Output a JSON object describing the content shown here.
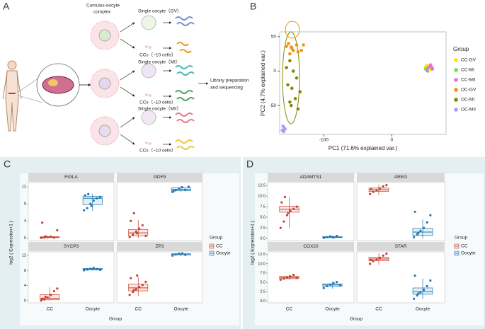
{
  "diagram": {
    "panel_label": "A",
    "complex_label": [
      "Cumulus-oocyte",
      "complex"
    ],
    "stages": [
      {
        "oocyte_label": "Single oocyte（GV）",
        "cc_label": "CCs（~10 cells）"
      },
      {
        "oocyte_label": "Single oocyte（MI）",
        "cc_label": "CCs（~10 cells）"
      },
      {
        "oocyte_label": "Single oocyte（MII）",
        "cc_label": "CCs（~10 cells）"
      }
    ],
    "output_label": [
      "Library preparation",
      "and  sequencing"
    ]
  },
  "chart_data": [
    {
      "type": "scatter",
      "panel_label": "B",
      "xlabel": "PC1 (71.6% explained var.)",
      "ylabel": "PC2 (4.7% explained var.)",
      "xlim": [
        -165,
        80
      ],
      "ylim": [
        -92,
        57
      ],
      "xticks": [
        -100,
        0
      ],
      "yticks": [
        -50,
        0,
        50
      ],
      "legend_title": "Group",
      "legend": "right",
      "series": [
        {
          "name": "CC-GV",
          "color": "#f2e600",
          "x": [
            52,
            55,
            58,
            50
          ],
          "y": [
            8,
            5,
            2,
            6
          ]
        },
        {
          "name": "CC-MI",
          "color": "#6ee23a",
          "x": [
            50,
            53,
            56,
            60
          ],
          "y": [
            3,
            0,
            6,
            4
          ]
        },
        {
          "name": "CC-MII",
          "color": "#f26adf",
          "x": [
            54,
            57,
            60,
            52,
            58
          ],
          "y": [
            5,
            9,
            3,
            1,
            7
          ]
        },
        {
          "name": "OC-GV",
          "color": "#ee9312",
          "x": [
            -152,
            -148,
            -145,
            -150,
            -140,
            -147,
            -155,
            -130,
            -133,
            -138
          ],
          "y": [
            40,
            35,
            30,
            25,
            38,
            33,
            36,
            38,
            30,
            28
          ]
        },
        {
          "name": "OC-MI",
          "color": "#86860a",
          "x": [
            -150,
            -148,
            -142,
            -135,
            -153,
            -140,
            -145,
            -155,
            -150,
            -138,
            -147
          ],
          "y": [
            -45,
            -50,
            -40,
            -30,
            -20,
            -10,
            0,
            5,
            15,
            -55,
            -25
          ]
        },
        {
          "name": "OC-MII",
          "color": "#a3a0f5",
          "x": [
            -160,
            -158,
            -161,
            -159,
            -157
          ],
          "y": [
            -80,
            -83,
            -86,
            -88,
            -84
          ]
        }
      ]
    },
    {
      "type": "box",
      "panel_label": "C",
      "xlabel": "Group",
      "ylabel": "log2 ( Expression+1 )",
      "categories": [
        "CC",
        "Oocyte"
      ],
      "ylim": [
        -0.6,
        13
      ],
      "yticks": [
        0,
        4,
        8,
        12
      ],
      "legend_title": "Group",
      "legend": "right",
      "series": [
        {
          "name": "CC",
          "color": "#c8402f"
        },
        {
          "name": "Oocyte",
          "color": "#1f78b4"
        }
      ],
      "facets": [
        {
          "title": "FIGLA",
          "boxes": [
            {
              "min": 0,
              "q1": 0.1,
              "median": 0.15,
              "q3": 0.3,
              "max": 0.6,
              "points": [
                0,
                0.1,
                0.2,
                0.3,
                0.1,
                1.8,
                3.6,
                0.4
              ]
            },
            {
              "min": 6.4,
              "q1": 7.8,
              "median": 9.3,
              "q3": 9.8,
              "max": 10.4,
              "points": [
                6.5,
                7,
                8,
                8.8,
                9.3,
                9.6,
                10,
                10.3,
                7.5
              ]
            }
          ]
        },
        {
          "title": "GDF9",
          "boxes": [
            {
              "min": 0,
              "q1": 0.5,
              "median": 1.2,
              "q3": 2.0,
              "max": 4.2,
              "points": [
                0.2,
                0.8,
                1.5,
                2.2,
                3,
                0.5,
                4,
                5.8,
                1.1
              ]
            },
            {
              "min": 10.7,
              "q1": 11.1,
              "median": 11.4,
              "q3": 11.8,
              "max": 12.1,
              "points": [
                10.8,
                11.2,
                11.5,
                11.9,
                11.3,
                12,
                11
              ]
            }
          ]
        },
        {
          "title": "SYCP3",
          "boxes": [
            {
              "min": 0,
              "q1": 0.2,
              "median": 0.6,
              "q3": 1.6,
              "max": 3.5,
              "points": [
                0,
                0.3,
                0.8,
                1.5,
                2.5,
                3.2,
                0.5,
                1
              ]
            },
            {
              "min": 8,
              "q1": 8.2,
              "median": 8.4,
              "q3": 8.6,
              "max": 8.8,
              "points": [
                8.1,
                8.3,
                8.5,
                8.7,
                8.4,
                8.2
              ]
            }
          ]
        },
        {
          "title": "ZP3",
          "boxes": [
            {
              "min": 1.2,
              "q1": 2.6,
              "median": 3.4,
              "q3": 4.4,
              "max": 6.3,
              "points": [
                1.5,
                2.3,
                3,
                3.6,
                4.2,
                5,
                6,
                2.8,
                6.7
              ]
            },
            {
              "min": 11.9,
              "q1": 12.2,
              "median": 12.4,
              "q3": 12.5,
              "max": 12.7,
              "points": [
                12,
                12.3,
                12.5,
                12.6,
                12.2
              ]
            }
          ]
        }
      ]
    },
    {
      "type": "box",
      "panel_label": "D",
      "xlabel": "Group",
      "ylabel": "log2 ( Expression+1 )",
      "categories": [
        "CC",
        "Oocyte"
      ],
      "ylim": [
        -0.5,
        13.2
      ],
      "yticks": [
        {
          "value": 0,
          "label": "0.0"
        },
        2.5,
        {
          "value": 5,
          "label": "5.0"
        },
        7.5,
        {
          "value": 10,
          "label": "10.0"
        },
        12.5
      ],
      "legend_title": "Group",
      "legend": "right",
      "series": [
        {
          "name": "CC",
          "color": "#c8402f"
        },
        {
          "name": "Oocyte",
          "color": "#1f78b4"
        }
      ],
      "facets": [
        {
          "title": "ADAMTS1",
          "boxes": [
            {
              "min": 2.5,
              "q1": 6.2,
              "median": 6.9,
              "q3": 7.6,
              "max": 9.8,
              "points": [
                2.5,
                4,
                5.5,
                6.5,
                7,
                7.5,
                8.5,
                9.8,
                6
              ]
            },
            {
              "min": 0,
              "q1": 0.2,
              "median": 0.3,
              "q3": 0.45,
              "max": 0.7,
              "points": [
                0.1,
                0.3,
                0.5,
                0.2,
                0.6
              ]
            }
          ]
        },
        {
          "title": "AREG",
          "boxes": [
            {
              "min": 10.2,
              "q1": 11.1,
              "median": 11.5,
              "q3": 11.9,
              "max": 12.7,
              "points": [
                10.5,
                11,
                11.4,
                11.8,
                12.3,
                12.6,
                11.6
              ]
            },
            {
              "min": 0,
              "q1": 0.7,
              "median": 1.5,
              "q3": 2.4,
              "max": 4.5,
              "points": [
                0.3,
                1,
                1.8,
                2.5,
                3.8,
                5.5,
                6.3,
                1.3
              ]
            }
          ]
        },
        {
          "title": "COX20",
          "boxes": [
            {
              "min": 5.6,
              "q1": 6,
              "median": 6.3,
              "q3": 6.6,
              "max": 7.1,
              "points": [
                5.7,
                6,
                6.3,
                6.6,
                7,
                6.2
              ]
            },
            {
              "min": 3.3,
              "q1": 4,
              "median": 4.3,
              "q3": 4.6,
              "max": 5.2,
              "points": [
                3.5,
                4,
                4.4,
                4.8,
                5.1,
                4.2
              ]
            }
          ]
        },
        {
          "title": "STAR",
          "boxes": [
            {
              "min": 9.8,
              "q1": 10.8,
              "median": 11.3,
              "q3": 11.8,
              "max": 12.8,
              "points": [
                10,
                10.7,
                11.2,
                11.6,
                12.2,
                12.7,
                11
              ]
            },
            {
              "min": 0.5,
              "q1": 1.8,
              "median": 2.5,
              "q3": 3.5,
              "max": 6,
              "points": [
                0.6,
                1.5,
                2.3,
                3,
                4,
                5.5,
                6.8,
                2
              ]
            }
          ]
        }
      ]
    }
  ]
}
